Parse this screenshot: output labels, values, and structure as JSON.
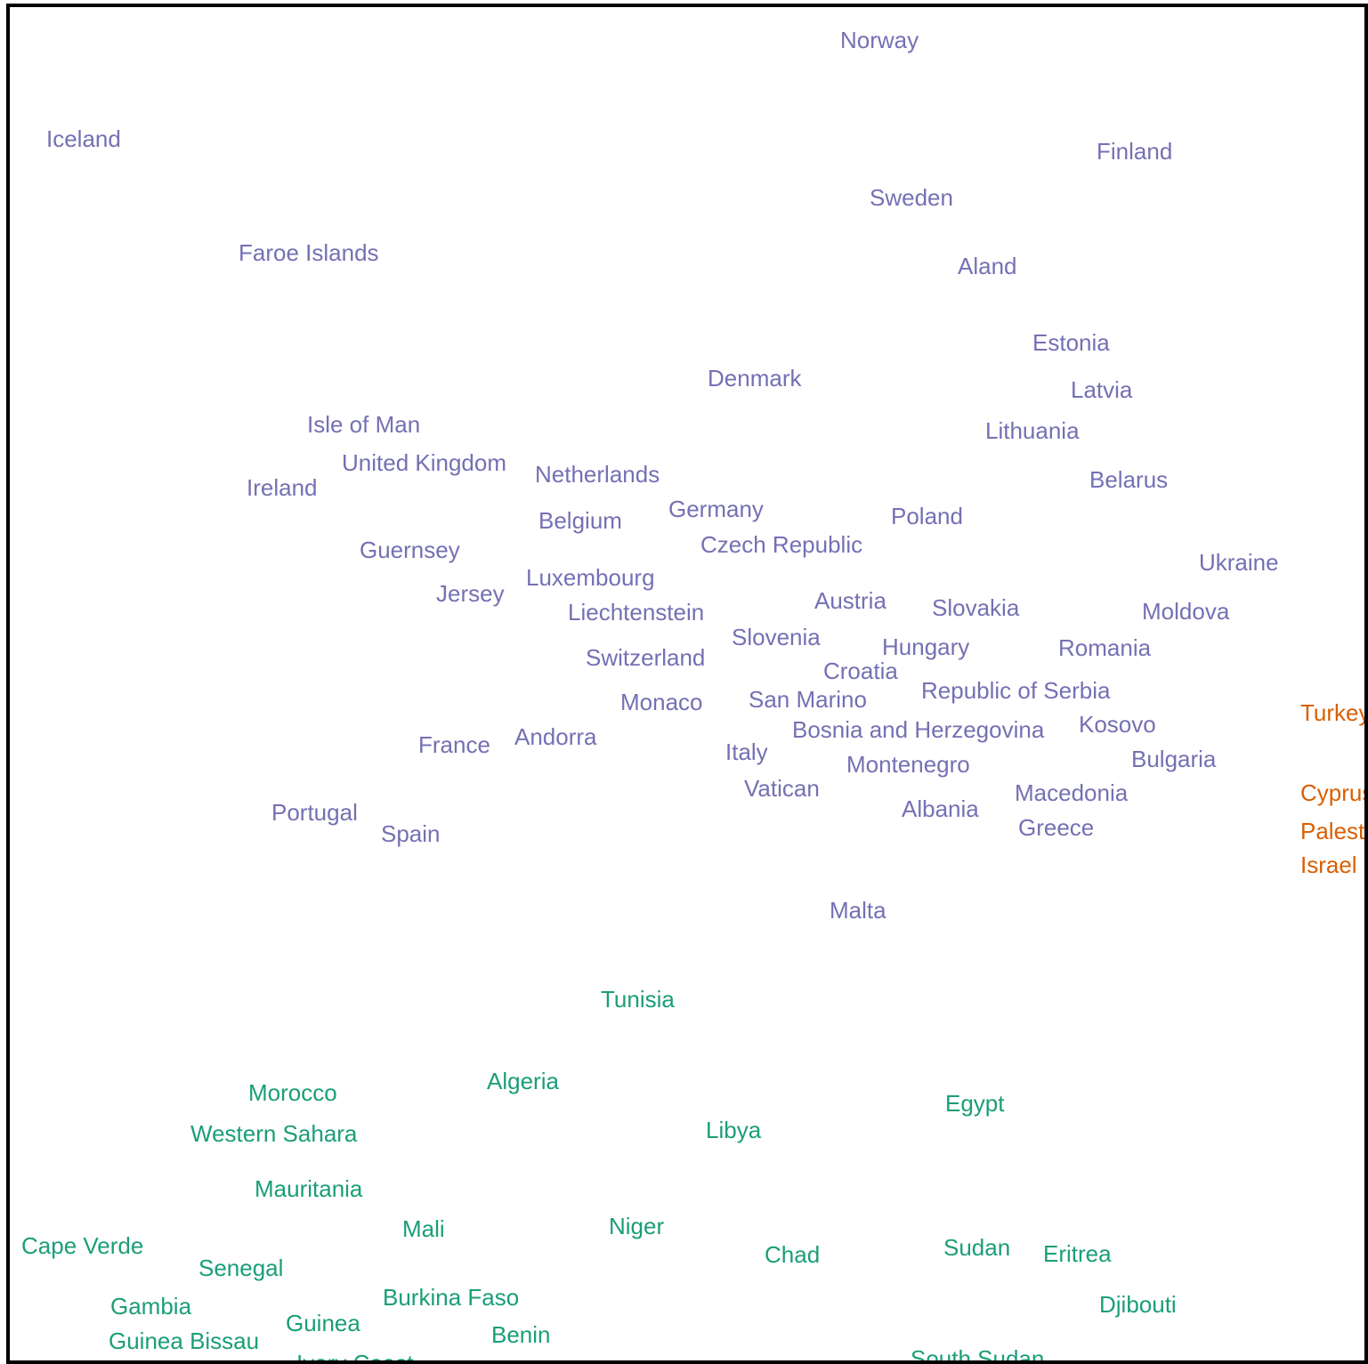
{
  "colors": {
    "europe": "#7570b3",
    "africa": "#1b9e77",
    "asia": "#d95f02"
  },
  "countries": [
    {
      "name": "Norway",
      "region": "europe"
    },
    {
      "name": "Iceland",
      "region": "europe"
    },
    {
      "name": "Finland",
      "region": "europe"
    },
    {
      "name": "Sweden",
      "region": "europe"
    },
    {
      "name": "Faroe Islands",
      "region": "europe"
    },
    {
      "name": "Aland",
      "region": "europe"
    },
    {
      "name": "Estonia",
      "region": "europe"
    },
    {
      "name": "Denmark",
      "region": "europe"
    },
    {
      "name": "Latvia",
      "region": "europe"
    },
    {
      "name": "Isle of Man",
      "region": "europe"
    },
    {
      "name": "Lithuania",
      "region": "europe"
    },
    {
      "name": "United Kingdom",
      "region": "europe"
    },
    {
      "name": "Netherlands",
      "region": "europe"
    },
    {
      "name": "Ireland",
      "region": "europe"
    },
    {
      "name": "Belarus",
      "region": "europe"
    },
    {
      "name": "Germany",
      "region": "europe"
    },
    {
      "name": "Poland",
      "region": "europe"
    },
    {
      "name": "Belgium",
      "region": "europe"
    },
    {
      "name": "Czech Republic",
      "region": "europe"
    },
    {
      "name": "Guernsey",
      "region": "europe"
    },
    {
      "name": "Ukraine",
      "region": "europe"
    },
    {
      "name": "Luxembourg",
      "region": "europe"
    },
    {
      "name": "Jersey",
      "region": "europe"
    },
    {
      "name": "Austria",
      "region": "europe"
    },
    {
      "name": "Slovakia",
      "region": "europe"
    },
    {
      "name": "Liechtenstein",
      "region": "europe"
    },
    {
      "name": "Moldova",
      "region": "europe"
    },
    {
      "name": "Slovenia",
      "region": "europe"
    },
    {
      "name": "Hungary",
      "region": "europe"
    },
    {
      "name": "Romania",
      "region": "europe"
    },
    {
      "name": "Switzerland",
      "region": "europe"
    },
    {
      "name": "Croatia",
      "region": "europe"
    },
    {
      "name": "Republic of Serbia",
      "region": "europe"
    },
    {
      "name": "San Marino",
      "region": "europe"
    },
    {
      "name": "Monaco",
      "region": "europe"
    },
    {
      "name": "Kosovo",
      "region": "europe"
    },
    {
      "name": "Bosnia and Herzegovina",
      "region": "europe"
    },
    {
      "name": "Andorra",
      "region": "europe"
    },
    {
      "name": "France",
      "region": "europe"
    },
    {
      "name": "Italy",
      "region": "europe"
    },
    {
      "name": "Bulgaria",
      "region": "europe"
    },
    {
      "name": "Montenegro",
      "region": "europe"
    },
    {
      "name": "Vatican",
      "region": "europe"
    },
    {
      "name": "Macedonia",
      "region": "europe"
    },
    {
      "name": "Albania",
      "region": "europe"
    },
    {
      "name": "Portugal",
      "region": "europe"
    },
    {
      "name": "Greece",
      "region": "europe"
    },
    {
      "name": "Spain",
      "region": "europe"
    },
    {
      "name": "Malta",
      "region": "europe"
    },
    {
      "name": "Turkey",
      "region": "asia"
    },
    {
      "name": "Cyprus",
      "region": "asia"
    },
    {
      "name": "Palestine",
      "region": "asia"
    },
    {
      "name": "Israel",
      "region": "asia"
    },
    {
      "name": "Tunisia",
      "region": "africa"
    },
    {
      "name": "Morocco",
      "region": "africa"
    },
    {
      "name": "Algeria",
      "region": "africa"
    },
    {
      "name": "Egypt",
      "region": "africa"
    },
    {
      "name": "Western Sahara",
      "region": "africa"
    },
    {
      "name": "Libya",
      "region": "africa"
    },
    {
      "name": "Mauritania",
      "region": "africa"
    },
    {
      "name": "Mali",
      "region": "africa"
    },
    {
      "name": "Niger",
      "region": "africa"
    },
    {
      "name": "Cape Verde",
      "region": "africa"
    },
    {
      "name": "Sudan",
      "region": "africa"
    },
    {
      "name": "Chad",
      "region": "africa"
    },
    {
      "name": "Eritrea",
      "region": "africa"
    },
    {
      "name": "Senegal",
      "region": "africa"
    },
    {
      "name": "Burkina Faso",
      "region": "africa"
    },
    {
      "name": "Djibouti",
      "region": "africa"
    },
    {
      "name": "Gambia",
      "region": "africa"
    },
    {
      "name": "Guinea",
      "region": "africa"
    },
    {
      "name": "Benin",
      "region": "africa"
    },
    {
      "name": "Guinea Bissau",
      "region": "africa"
    },
    {
      "name": "South Sudan",
      "region": "africa"
    },
    {
      "name": "Ivory Coast",
      "region": "africa"
    }
  ]
}
